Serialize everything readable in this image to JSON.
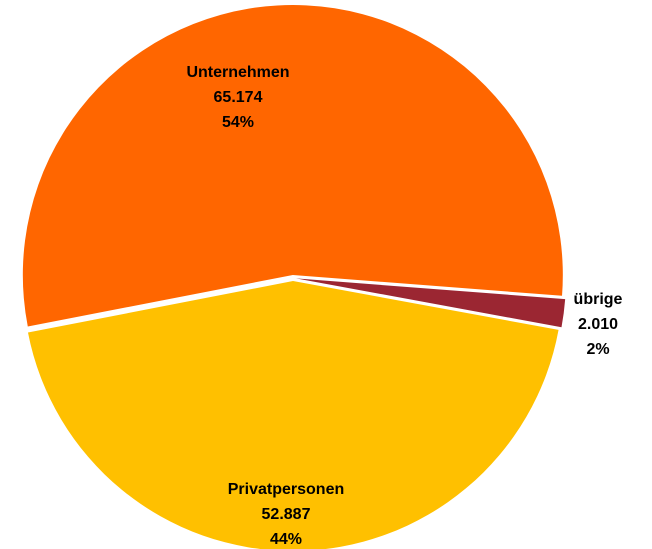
{
  "chart_data": {
    "type": "pie",
    "categories": [
      "Unternehmen",
      "übrige",
      "Privatpersonen"
    ],
    "values": [
      65174,
      2010,
      52887
    ],
    "value_labels": [
      "65.174",
      "2.010",
      "52.887"
    ],
    "percent_labels": [
      "54%",
      "2%",
      "44%"
    ],
    "colors": [
      "#ff6600",
      "#9b2632",
      "#ffc000"
    ]
  }
}
